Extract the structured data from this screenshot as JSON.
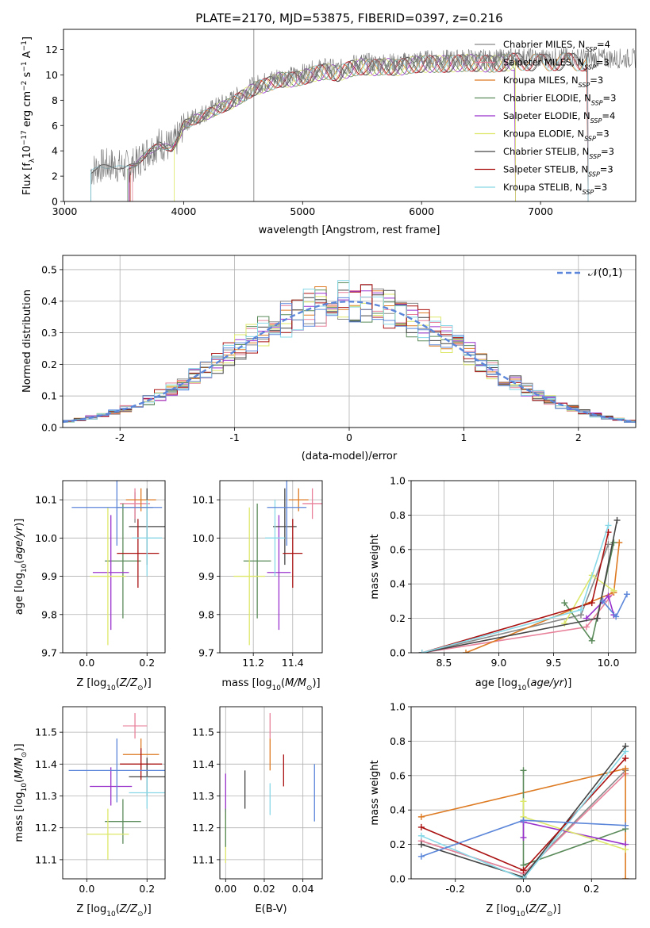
{
  "figure_title": "PLATE=2170, MJD=53875, FIBERID=0397, z=0.216",
  "colors": {
    "chabrier_miles": "#888888",
    "salpeter_miles": "#e8829b",
    "kroupa_miles": "#dd7a22",
    "chabrier_elodie": "#5a8a5a",
    "salpeter_elodie": "#9932cc",
    "kroupa_elodie": "#dde86a",
    "chabrier_stelib": "#444444",
    "salpeter_stelib": "#aa1111",
    "kroupa_stelib": "#88d8e8",
    "blue": "#5b86d9",
    "grid": "#b0b0b0"
  },
  "chart_data": [
    {
      "id": "spectrum",
      "type": "line",
      "title": "PLATE=2170, MJD=53875, FIBERID=0397, z=0.216",
      "xlabel": "wavelength [Angstrom, rest frame]",
      "ylabel": "Flux [f_λ 10^-17 erg cm^-2 s^-1 A^-1]",
      "xlim": [
        2990,
        7800
      ],
      "ylim": [
        0,
        13.6
      ],
      "xticks": [
        3000,
        4000,
        5000,
        6000,
        7000
      ],
      "yticks": [
        0,
        2,
        4,
        6,
        8,
        10,
        12
      ],
      "grid": false,
      "legend_position": "right",
      "legend": [
        "Chabrier MILES, N_SSP=4",
        "Salpeter MILES, N_SSP=3",
        "Kroupa MILES, N_SSP=3",
        "Chabrier ELODIE, N_SSP=3",
        "Salpeter ELODIE, N_SSP=4",
        "Kroupa ELODIE, N_SSP=3",
        "Chabrier STELIB, N_SSP=3",
        "Salpeter STELIB, N_SSP=3",
        "Kroupa STELIB, N_SSP=3"
      ],
      "continuum": {
        "x": [
          3220,
          3300,
          3400,
          3500,
          3600,
          3700,
          3800,
          3900,
          3950,
          4000,
          4100,
          4200,
          4300,
          4400,
          4500,
          4600,
          4700,
          4800,
          4900,
          5000,
          5100,
          5200,
          5300,
          5400,
          5500,
          5600,
          5700,
          5800,
          5900,
          6000,
          6200,
          6400,
          6600,
          6800,
          7000,
          7200,
          7400
        ],
        "y": [
          2.4,
          2.8,
          2.9,
          2.7,
          3.0,
          4.0,
          4.6,
          4.3,
          5.0,
          6.2,
          6.7,
          7.1,
          7.6,
          8.0,
          8.6,
          9.2,
          9.5,
          9.9,
          9.9,
          10.1,
          10.4,
          10.6,
          10.4,
          10.8,
          11.0,
          10.9,
          11.0,
          10.9,
          11.1,
          11.2,
          11.2,
          11.3,
          11.2,
          11.4,
          11.3,
          11.4,
          11.3
        ]
      },
      "model_ranges": [
        {
          "start": 3220,
          "end": 7400
        },
        {
          "start": 3570,
          "end": 7400
        },
        {
          "start": 3550,
          "end": 7400
        },
        {
          "start": 3530,
          "end": 6790
        },
        {
          "start": 3540,
          "end": 6790
        },
        {
          "start": 3920,
          "end": 6790
        },
        {
          "start": 3220,
          "end": 7400
        },
        {
          "start": 3550,
          "end": 7400
        },
        {
          "start": 3220,
          "end": 7400
        }
      ]
    },
    {
      "id": "residual-histogram",
      "type": "bar",
      "xlabel": "(data-model)/error",
      "ylabel": "Normed distribution",
      "xlim": [
        -2.5,
        2.5
      ],
      "ylim": [
        0,
        0.545
      ],
      "xticks": [
        -2,
        -1,
        0,
        1,
        2
      ],
      "yticks": [
        0.0,
        0.1,
        0.2,
        0.3,
        0.4,
        0.5
      ],
      "grid": true,
      "legend": [
        "𝒩(0,1)"
      ],
      "legend_position": "top-right",
      "bin_width": 0.1,
      "bins_start": -2.5,
      "gaussian": {
        "mean": 0,
        "sigma": 1
      }
    },
    {
      "id": "age-vs-Z",
      "type": "scatter",
      "xlabel": "Z [log10(Z/Z⊙)]",
      "ylabel": "age [log10(age/yr)]",
      "xlim": [
        -0.08,
        0.26
      ],
      "ylim": [
        9.7,
        10.15
      ],
      "xticks": [
        0.0,
        0.2
      ],
      "yticks": [
        9.7,
        9.8,
        9.9,
        10.0,
        10.1
      ],
      "grid": true,
      "points": [
        {
          "series": "Chabrier MILES",
          "x": 0.16,
          "xerr": 0.06,
          "y": 10.08,
          "yerr": 0.04
        },
        {
          "series": "Salpeter MILES",
          "x": 0.16,
          "xerr": 0.05,
          "y": 10.09,
          "yerr": 0.04
        },
        {
          "series": "Kroupa MILES",
          "x": 0.18,
          "xerr": 0.05,
          "y": 10.1,
          "yerr": 0.03
        },
        {
          "series": "Chabrier ELODIE",
          "x": 0.12,
          "xerr": 0.06,
          "y": 9.94,
          "yerr": 0.15
        },
        {
          "series": "Salpeter ELODIE",
          "x": 0.08,
          "xerr": 0.06,
          "y": 9.91,
          "yerr": 0.15
        },
        {
          "series": "Kroupa ELODIE",
          "x": 0.07,
          "xerr": 0.06,
          "y": 9.9,
          "yerr": 0.18
        },
        {
          "series": "Chabrier STELIB",
          "x": 0.2,
          "xerr": 0.06,
          "y": 10.03,
          "yerr": 0.1
        },
        {
          "series": "Salpeter STELIB",
          "x": 0.17,
          "xerr": 0.07,
          "y": 9.96,
          "yerr": 0.09
        },
        {
          "series": "Kroupa STELIB",
          "x": 0.2,
          "xerr": 0.05,
          "y": 10.0,
          "yerr": 0.1
        },
        {
          "series": "blue",
          "x": 0.1,
          "xerr": 0.15,
          "y": 10.08,
          "yerr": 0.1
        }
      ]
    },
    {
      "id": "age-vs-mass",
      "type": "scatter",
      "xlabel": "mass [log10(M/M⊙)]",
      "ylabel": "",
      "xlim": [
        11.03,
        11.55
      ],
      "ylim": [
        9.7,
        10.15
      ],
      "xticks": [
        11.2,
        11.4
      ],
      "yticks": [
        9.7,
        9.8,
        9.9,
        10.0,
        10.1
      ],
      "grid": true,
      "points": [
        {
          "series": "Salpeter MILES",
          "x": 11.5,
          "xerr": 0.05,
          "y": 10.09,
          "yerr": 0.04
        },
        {
          "series": "Kroupa MILES",
          "x": 11.43,
          "xerr": 0.05,
          "y": 10.1,
          "yerr": 0.03
        },
        {
          "series": "Chabrier ELODIE",
          "x": 11.22,
          "xerr": 0.07,
          "y": 9.94,
          "yerr": 0.15
        },
        {
          "series": "Salpeter ELODIE",
          "x": 11.33,
          "xerr": 0.06,
          "y": 9.91,
          "yerr": 0.15
        },
        {
          "series": "Kroupa ELODIE",
          "x": 11.18,
          "xerr": 0.08,
          "y": 9.9,
          "yerr": 0.18
        },
        {
          "series": "Chabrier STELIB",
          "x": 11.36,
          "xerr": 0.06,
          "y": 10.03,
          "yerr": 0.1
        },
        {
          "series": "Salpeter STELIB",
          "x": 11.4,
          "xerr": 0.05,
          "y": 9.96,
          "yerr": 0.09
        },
        {
          "series": "Kroupa STELIB",
          "x": 11.31,
          "xerr": 0.05,
          "y": 10.0,
          "yerr": 0.1
        },
        {
          "series": "blue",
          "x": 11.37,
          "xerr": 0.1,
          "y": 10.08,
          "yerr": 0.1
        }
      ]
    },
    {
      "id": "weight-vs-age",
      "type": "line",
      "xlabel": "age [log10(age/yr)]",
      "ylabel": "mass weight",
      "xlim": [
        8.2,
        10.25
      ],
      "ylim": [
        0,
        1.0
      ],
      "xticks": [
        8.5,
        9.0,
        9.5,
        10.0
      ],
      "yticks": [
        0.0,
        0.2,
        0.4,
        0.6,
        0.8,
        1.0
      ],
      "grid": true,
      "series": [
        {
          "name": "Chabrier MILES",
          "x": [
            8.3,
            9.75,
            10.0
          ],
          "y": [
            0.0,
            0.22,
            0.63
          ]
        },
        {
          "name": "Salpeter MILES",
          "x": [
            8.3,
            9.8,
            10.05
          ],
          "y": [
            0.0,
            0.15,
            0.35
          ]
        },
        {
          "name": "Kroupa MILES",
          "x": [
            8.7,
            10.05,
            10.1
          ],
          "y": [
            0.0,
            0.35,
            0.64
          ]
        },
        {
          "name": "Chabrier ELODIE",
          "x": [
            9.6,
            9.85,
            10.05
          ],
          "y": [
            0.29,
            0.07,
            0.64
          ]
        },
        {
          "name": "Salpeter ELODIE",
          "x": [
            9.8,
            10.0,
            10.05
          ],
          "y": [
            0.2,
            0.33,
            0.22
          ]
        },
        {
          "name": "Kroupa ELODIE",
          "x": [
            9.6,
            9.85,
            10.05
          ],
          "y": [
            0.17,
            0.45,
            0.36
          ]
        },
        {
          "name": "Chabrier STELIB",
          "x": [
            8.3,
            9.9,
            10.08
          ],
          "y": [
            0.0,
            0.2,
            0.77
          ]
        },
        {
          "name": "Salpeter STELIB",
          "x": [
            8.3,
            9.85,
            10.0
          ],
          "y": [
            0.0,
            0.29,
            0.7
          ]
        },
        {
          "name": "Kroupa STELIB",
          "x": [
            8.3,
            9.75,
            10.0
          ],
          "y": [
            0.0,
            0.25,
            0.74
          ]
        },
        {
          "name": "blue",
          "x": [
            9.95,
            10.07,
            10.17
          ],
          "y": [
            0.3,
            0.21,
            0.34
          ]
        }
      ]
    },
    {
      "id": "mass-vs-Z",
      "type": "scatter",
      "xlabel": "Z [log10(Z/Z⊙)]",
      "ylabel": "mass [log10(M/M⊙)]",
      "xlim": [
        -0.08,
        0.26
      ],
      "ylim": [
        11.04,
        11.58
      ],
      "xticks": [
        0.0,
        0.2
      ],
      "yticks": [
        11.1,
        11.2,
        11.3,
        11.4,
        11.5
      ],
      "grid": true,
      "points": [
        {
          "series": "Salpeter MILES",
          "x": 0.16,
          "xerr": 0.04,
          "y": 11.52,
          "yerr": 0.04
        },
        {
          "series": "Kroupa MILES",
          "x": 0.18,
          "xerr": 0.06,
          "y": 11.43,
          "yerr": 0.05
        },
        {
          "series": "Chabrier ELODIE",
          "x": 0.12,
          "xerr": 0.06,
          "y": 11.22,
          "yerr": 0.07
        },
        {
          "series": "Salpeter ELODIE",
          "x": 0.08,
          "xerr": 0.07,
          "y": 11.33,
          "yerr": 0.06
        },
        {
          "series": "Kroupa ELODIE",
          "x": 0.07,
          "xerr": 0.07,
          "y": 11.18,
          "yerr": 0.08
        },
        {
          "series": "Chabrier STELIB",
          "x": 0.2,
          "xerr": 0.06,
          "y": 11.36,
          "yerr": 0.06
        },
        {
          "series": "Salpeter STELIB",
          "x": 0.18,
          "xerr": 0.07,
          "y": 11.4,
          "yerr": 0.05
        },
        {
          "series": "Kroupa STELIB",
          "x": 0.2,
          "xerr": 0.06,
          "y": 11.31,
          "yerr": 0.05
        },
        {
          "series": "blue",
          "x": 0.1,
          "xerr": 0.16,
          "y": 11.38,
          "yerr": 0.1
        }
      ]
    },
    {
      "id": "mass-vs-ebv",
      "type": "scatter",
      "xlabel": "E(B-V)",
      "ylabel": "",
      "xlim": [
        -0.003,
        0.05
      ],
      "ylim": [
        11.04,
        11.58
      ],
      "xticks": [
        0.0,
        0.02,
        0.04
      ],
      "yticks": [
        11.1,
        11.2,
        11.3,
        11.4,
        11.5
      ],
      "grid": true,
      "points": [
        {
          "series": "Salpeter MILES",
          "x": 0.023,
          "y": 11.52,
          "yerr": 0.04
        },
        {
          "series": "Kroupa MILES",
          "x": 0.023,
          "y": 11.43,
          "yerr": 0.05
        },
        {
          "series": "Kroupa STELIB",
          "x": 0.023,
          "y": 11.29,
          "yerr": 0.05
        },
        {
          "series": "Salpeter STELIB",
          "x": 0.03,
          "y": 11.38,
          "yerr": 0.05
        },
        {
          "series": "Chabrier STELIB",
          "x": 0.01,
          "y": 11.32,
          "yerr": 0.06
        },
        {
          "series": "Salpeter ELODIE",
          "x": 0.0,
          "y": 11.3,
          "yerr": 0.07
        },
        {
          "series": "Kroupa ELODIE",
          "x": 0.0,
          "y": 11.17,
          "yerr": 0.08
        },
        {
          "series": "Chabrier ELODIE",
          "x": 0.0,
          "y": 11.2,
          "yerr": 0.06
        },
        {
          "series": "blue",
          "x": 0.046,
          "y": 11.31,
          "yerr": 0.09
        }
      ]
    },
    {
      "id": "weight-vs-Z",
      "type": "line",
      "xlabel": "Z [log10(Z/Z⊙)]",
      "ylabel": "mass weight",
      "xlim": [
        -0.33,
        0.33
      ],
      "ylim": [
        0,
        1.0
      ],
      "xticks": [
        -0.2,
        0.0,
        0.2
      ],
      "yticks": [
        0.0,
        0.2,
        0.4,
        0.6,
        0.8,
        1.0
      ],
      "grid": true,
      "series": [
        {
          "name": "Chabrier MILES",
          "x": [
            -0.3,
            0.0,
            0.3
          ],
          "y": [
            0.22,
            0.03,
            0.63
          ]
        },
        {
          "name": "Salpeter MILES",
          "x": [
            -0.3,
            0.0,
            0.3
          ],
          "y": [
            0.22,
            0.03,
            0.61
          ]
        },
        {
          "name": "Kroupa MILES",
          "x": [
            -0.3,
            0.3,
            0.3
          ],
          "y": [
            0.36,
            0.64,
            0.0
          ]
        },
        {
          "name": "Chabrier ELODIE",
          "x": [
            0.0,
            0.0,
            0.3
          ],
          "y": [
            0.63,
            0.08,
            0.29
          ]
        },
        {
          "name": "Salpeter ELODIE",
          "x": [
            0.0,
            0.0,
            0.3
          ],
          "y": [
            0.24,
            0.33,
            0.2
          ]
        },
        {
          "name": "Kroupa ELODIE",
          "x": [
            0.0,
            0.0,
            0.3
          ],
          "y": [
            0.45,
            0.36,
            0.17
          ]
        },
        {
          "name": "Chabrier STELIB",
          "x": [
            -0.3,
            0.0,
            0.3
          ],
          "y": [
            0.2,
            0.01,
            0.77
          ]
        },
        {
          "name": "Salpeter STELIB",
          "x": [
            -0.3,
            0.0,
            0.3
          ],
          "y": [
            0.3,
            0.05,
            0.7
          ]
        },
        {
          "name": "Kroupa STELIB",
          "x": [
            -0.3,
            0.0,
            0.3
          ],
          "y": [
            0.25,
            0.0,
            0.74
          ]
        },
        {
          "name": "blue",
          "x": [
            -0.3,
            0.0,
            0.3
          ],
          "y": [
            0.13,
            0.34,
            0.31
          ]
        }
      ]
    }
  ]
}
